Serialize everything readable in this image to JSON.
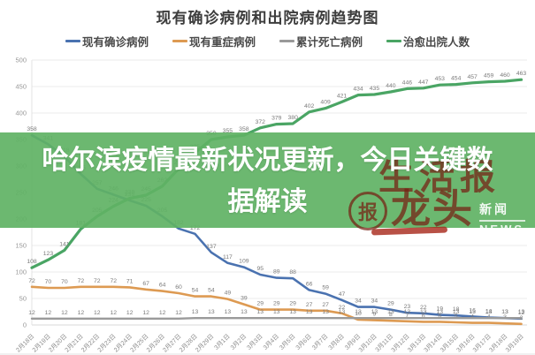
{
  "title": "现有确诊病例和出院病例趋势图",
  "banner": {
    "text": "哈尔滨疫情最新状况更新，今日关键数据解读"
  },
  "watermark": {
    "top": "生活报",
    "seal": "报",
    "brand": "龙头",
    "sub1": "新闻",
    "sub2": "NEWS"
  },
  "colors": {
    "confirmed": "#4a72b0",
    "severe": "#dd9a52",
    "deaths": "#9a9a9a",
    "cured": "#4aa564",
    "banner_green": "#60b264",
    "grid": "#ebebeb",
    "axis_text": "#979797",
    "data_label": "#7a7a7a"
  },
  "legend": [
    {
      "label": "现有确诊病例",
      "color": "#4a72b0",
      "id": "confirmed"
    },
    {
      "label": "现有重症病例",
      "color": "#dd9a52",
      "id": "severe"
    },
    {
      "label": "累计死亡病例",
      "color": "#9a9a9a",
      "id": "deaths"
    },
    {
      "label": "治愈出院人数",
      "color": "#4aa564",
      "id": "cured"
    }
  ],
  "chart_data": {
    "type": "line",
    "title": "现有确诊病例和出院病例趋势图",
    "xlabel": "",
    "ylabel": "",
    "ylim": [
      0,
      500
    ],
    "y_ticks": [
      0,
      50,
      100,
      150,
      200,
      250,
      300,
      350,
      400,
      450,
      500
    ],
    "grid": true,
    "legend_position": "top",
    "categories": [
      "2月18日",
      "2月19日",
      "2月20日",
      "2月21日",
      "2月22日",
      "2月23日",
      "2月24日",
      "2月25日",
      "2月26日",
      "2月27日",
      "2月28日",
      "2月29日",
      "3月1日",
      "3月2日",
      "3月3日",
      "3月4日",
      "3月5日",
      "3月6日",
      "3月7日",
      "3月8日",
      "3月9日",
      "3月10日",
      "3月11日",
      "3月12日",
      "3月13日",
      "3月14日",
      "3月15日",
      "3月16日",
      "3月17日",
      "3月18日",
      "3月19日"
    ],
    "series": [
      {
        "name": "现有确诊病例",
        "id": "line-confirmed",
        "color": "#4a72b0",
        "width": 2.6,
        "values": [
          358,
          341,
          318,
          285,
          257,
          246,
          235,
          225,
          205,
          182,
          172,
          137,
          117,
          109,
          95,
          89,
          88,
          66,
          59,
          47,
          34,
          34,
          29,
          23,
          22,
          19,
          18,
          16,
          14,
          13,
          12
        ]
      },
      {
        "name": "现有重症病例",
        "id": "line-severe",
        "color": "#dd9a52",
        "width": 2.6,
        "values": [
          72,
          70,
          70,
          72,
          72,
          72,
          71,
          67,
          64,
          60,
          54,
          54,
          49,
          39,
          29,
          29,
          29,
          27,
          27,
          22,
          10,
          9,
          8,
          7,
          6,
          6,
          5,
          4,
          4,
          3,
          2
        ]
      },
      {
        "name": "累计死亡病例",
        "id": "line-deaths",
        "color": "#9a9a9a",
        "width": 2.4,
        "values": [
          12,
          12,
          12,
          12,
          12,
          12,
          12,
          12,
          12,
          12,
          13,
          13,
          13,
          13,
          13,
          13,
          13,
          13,
          13,
          13,
          13,
          13,
          13,
          13,
          13,
          13,
          13,
          13,
          13,
          13,
          13
        ]
      },
      {
        "name": "治愈出院人数",
        "id": "line-cured",
        "color": "#4aa564",
        "width": 3.2,
        "values": [
          108,
          123,
          141,
          181,
          205,
          224,
          239,
          245,
          262,
          295,
          325,
          350,
          355,
          358,
          372,
          379,
          380,
          402,
          409,
          421,
          434,
          435,
          440,
          446,
          447,
          453,
          454,
          457,
          459,
          460,
          463
        ]
      }
    ]
  }
}
